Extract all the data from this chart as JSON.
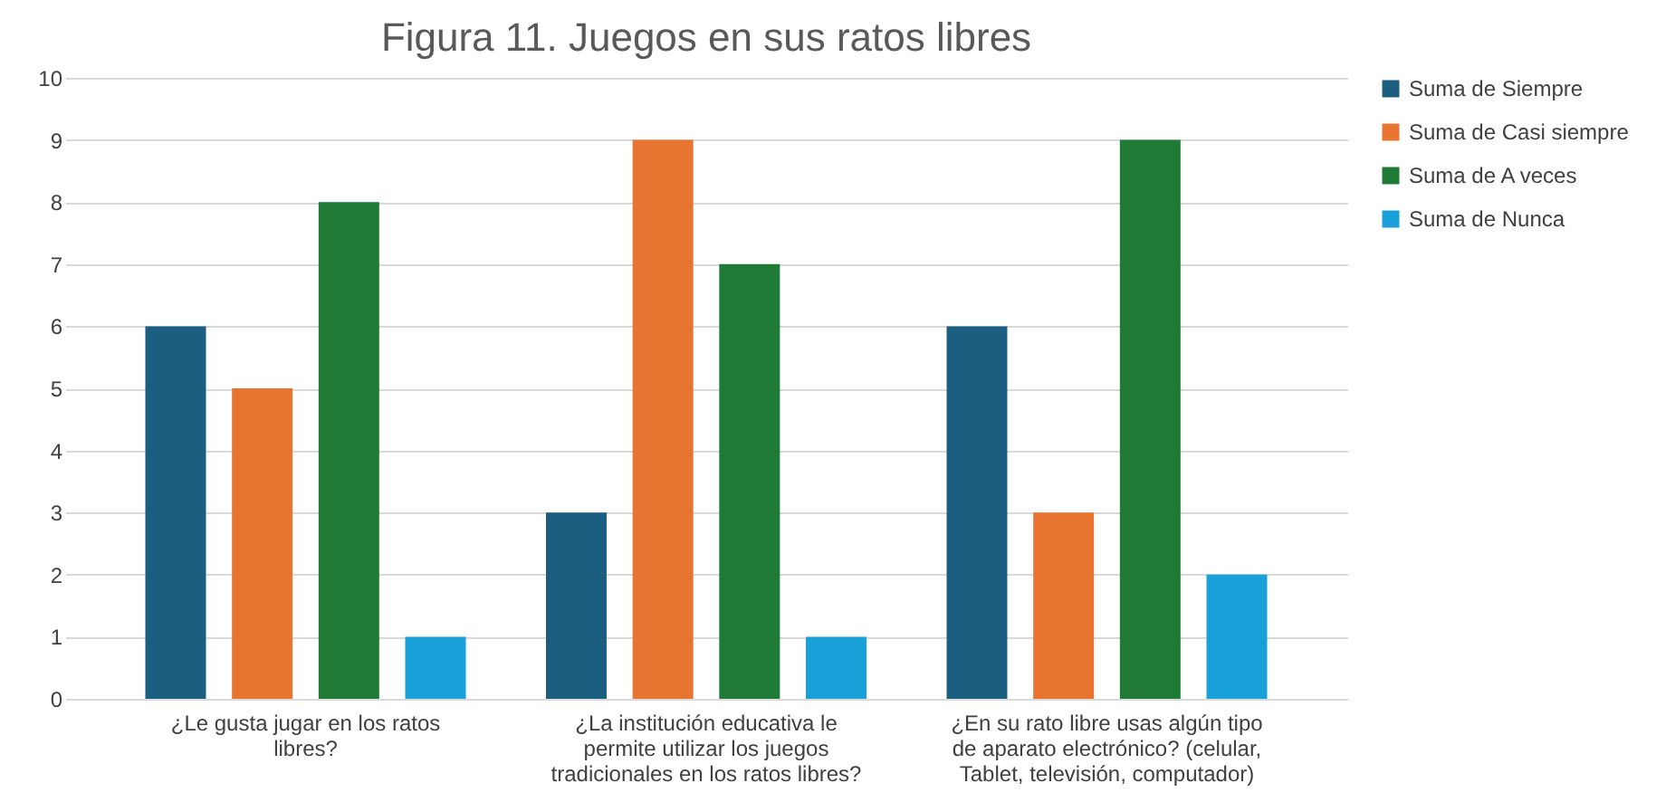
{
  "chart_data": {
    "type": "bar",
    "title": "Figura 11. Juegos en sus ratos libres",
    "categories": [
      "¿Le gusta jugar en los ratos libres?",
      "¿La institución educativa le permite utilizar los juegos tradicionales en los ratos libres?",
      "¿En su rato libre usas algún tipo de aparato electrónico? (celular, Tablet, televisión, computador)"
    ],
    "series": [
      {
        "name": "Suma de Siempre",
        "color": "#1b5e80",
        "values": [
          6,
          3,
          6
        ]
      },
      {
        "name": "Suma de Casi siempre",
        "color": "#e87431",
        "values": [
          5,
          9,
          3
        ]
      },
      {
        "name": "Suma de A veces",
        "color": "#1f7a35",
        "values": [
          8,
          7,
          9
        ]
      },
      {
        "name": "Suma de Nunca",
        "color": "#1aa0d8",
        "values": [
          1,
          1,
          2
        ]
      }
    ],
    "ylim": [
      0,
      10
    ],
    "yticks": [
      0,
      1,
      2,
      3,
      4,
      5,
      6,
      7,
      8,
      9,
      10
    ],
    "grid": "y",
    "legend": "right"
  }
}
